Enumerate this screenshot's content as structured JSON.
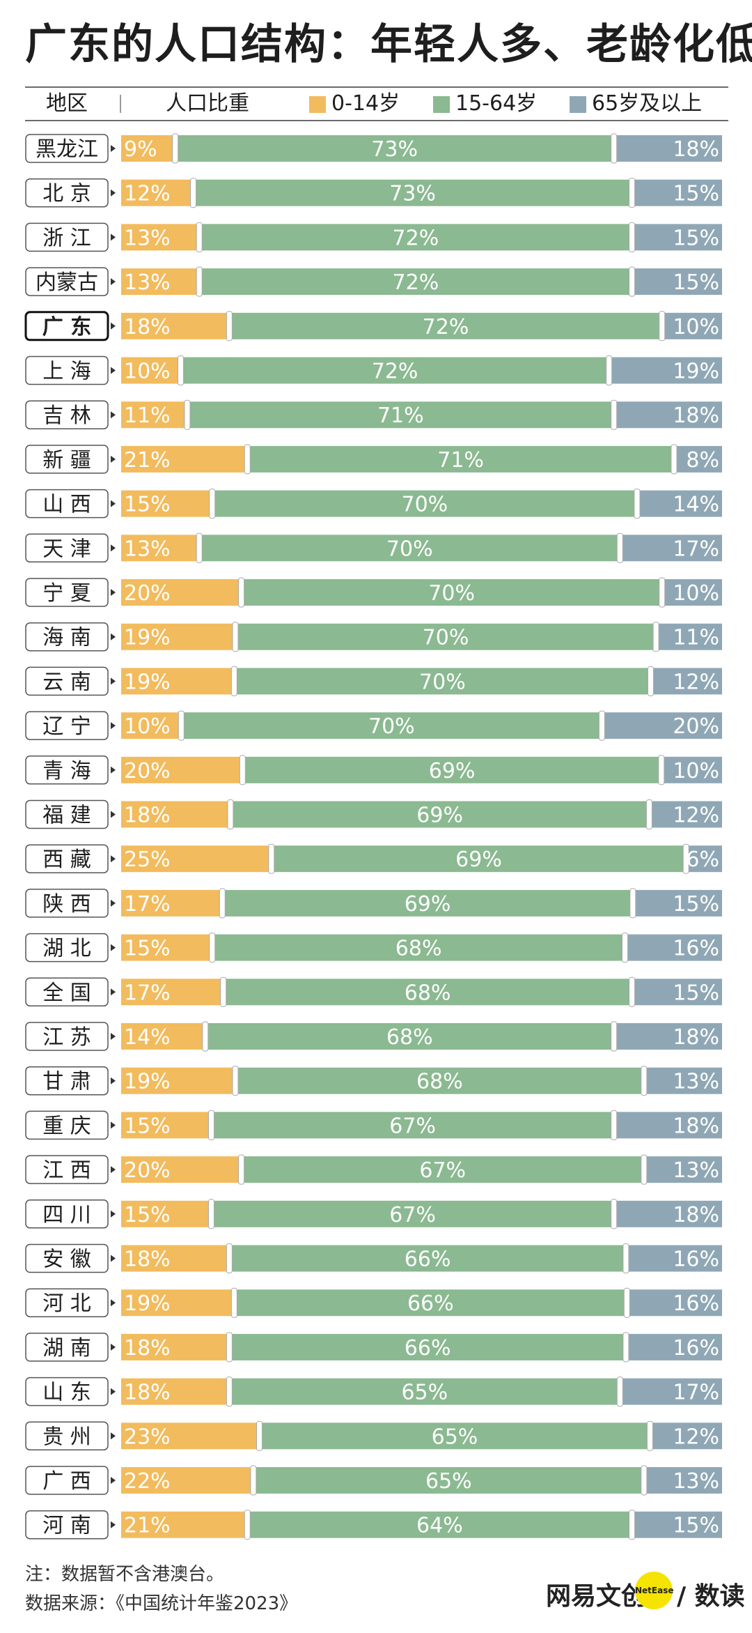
{
  "title": "广东的人口结构：年轻人多、老龄化低",
  "header": {
    "region_label": "地区",
    "share_label": "人口比重",
    "legend": [
      {
        "label": "0-14岁",
        "color": "#f2bb5d"
      },
      {
        "label": "15-64岁",
        "color": "#8bb991"
      },
      {
        "label": "65岁及以上",
        "color": "#8fa7b5"
      }
    ]
  },
  "chart_data": {
    "type": "bar",
    "orientation": "horizontal",
    "stacked": true,
    "unit": "%",
    "highlight": "广东",
    "series": [
      {
        "name": "0-14岁",
        "color": "#f2bb5d"
      },
      {
        "name": "15-64岁",
        "color": "#8bb991"
      },
      {
        "name": "65岁及以上",
        "color": "#8fa7b5"
      }
    ],
    "rows": [
      {
        "region": "黑龙江",
        "values": [
          9,
          73,
          18
        ]
      },
      {
        "region": "北 京",
        "values": [
          12,
          73,
          15
        ]
      },
      {
        "region": "浙 江",
        "values": [
          13,
          72,
          15
        ]
      },
      {
        "region": "内蒙古",
        "values": [
          13,
          72,
          15
        ]
      },
      {
        "region": "广 东",
        "values": [
          18,
          72,
          10
        ]
      },
      {
        "region": "上 海",
        "values": [
          10,
          72,
          19
        ]
      },
      {
        "region": "吉 林",
        "values": [
          11,
          71,
          18
        ]
      },
      {
        "region": "新 疆",
        "values": [
          21,
          71,
          8
        ]
      },
      {
        "region": "山 西",
        "values": [
          15,
          70,
          14
        ]
      },
      {
        "region": "天 津",
        "values": [
          13,
          70,
          17
        ]
      },
      {
        "region": "宁 夏",
        "values": [
          20,
          70,
          10
        ]
      },
      {
        "region": "海 南",
        "values": [
          19,
          70,
          11
        ]
      },
      {
        "region": "云 南",
        "values": [
          19,
          70,
          12
        ]
      },
      {
        "region": "辽 宁",
        "values": [
          10,
          70,
          20
        ]
      },
      {
        "region": "青 海",
        "values": [
          20,
          69,
          10
        ]
      },
      {
        "region": "福 建",
        "values": [
          18,
          69,
          12
        ]
      },
      {
        "region": "西 藏",
        "values": [
          25,
          69,
          6
        ]
      },
      {
        "region": "陕 西",
        "values": [
          17,
          69,
          15
        ]
      },
      {
        "region": "湖 北",
        "values": [
          15,
          68,
          16
        ]
      },
      {
        "region": "全 国",
        "values": [
          17,
          68,
          15
        ]
      },
      {
        "region": "江 苏",
        "values": [
          14,
          68,
          18
        ]
      },
      {
        "region": "甘 肃",
        "values": [
          19,
          68,
          13
        ]
      },
      {
        "region": "重 庆",
        "values": [
          15,
          67,
          18
        ]
      },
      {
        "region": "江 西",
        "values": [
          20,
          67,
          13
        ]
      },
      {
        "region": "四 川",
        "values": [
          15,
          67,
          18
        ]
      },
      {
        "region": "安 徽",
        "values": [
          18,
          66,
          16
        ]
      },
      {
        "region": "河 北",
        "values": [
          19,
          66,
          16
        ]
      },
      {
        "region": "湖 南",
        "values": [
          18,
          66,
          16
        ]
      },
      {
        "region": "山 东",
        "values": [
          18,
          65,
          17
        ]
      },
      {
        "region": "贵 州",
        "values": [
          23,
          65,
          12
        ]
      },
      {
        "region": "广 西",
        "values": [
          22,
          65,
          13
        ]
      },
      {
        "region": "河 南",
        "values": [
          21,
          64,
          15
        ]
      }
    ]
  },
  "footer": {
    "note": "注：数据暂不含港澳台。",
    "source": "数据来源：《中国统计年鉴2023》",
    "logo_left": "网易文创",
    "logo_badge": "NetEase",
    "logo_right": "/ 数读"
  }
}
